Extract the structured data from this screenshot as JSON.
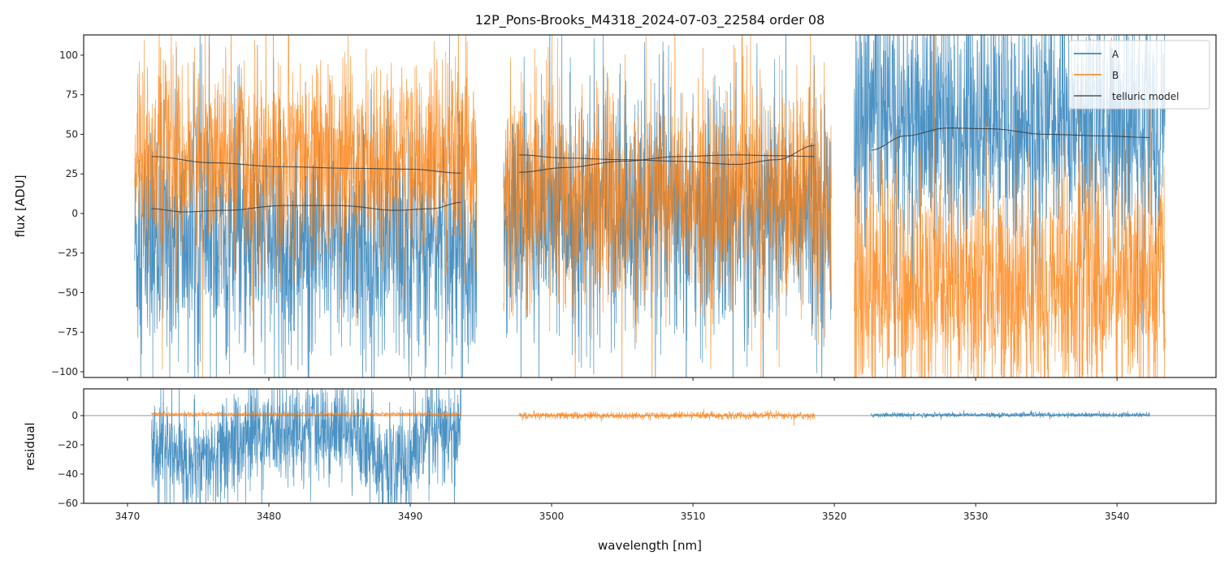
{
  "chart_data": [
    {
      "type": "line",
      "title": "12P_Pons-Brooks_M4318_2024-07-03_22584  order 08",
      "xlabel": "",
      "ylabel": "flux [ADU]",
      "xlim": [
        3466.9,
        3547.0
      ],
      "ylim": [
        -103.6,
        112.8
      ],
      "xticks": [
        3470,
        3480,
        3490,
        3500,
        3510,
        3520,
        3530,
        3540
      ],
      "yticks": [
        -100,
        -75,
        -50,
        -25,
        0,
        25,
        50,
        75,
        100
      ],
      "ytick_labels": [
        "−100",
        "−75",
        "−50",
        "−25",
        "0",
        "25",
        "50",
        "75",
        "100"
      ],
      "legend": {
        "placement": "top-right",
        "entries": [
          "A",
          "B",
          "telluric model"
        ]
      },
      "colors": {
        "A": "#1f77b4",
        "B": "#ff7f0e",
        "telluric model": "#333333"
      },
      "series": [
        {
          "name": "A",
          "segments": [
            {
              "x_range": [
                3470.5,
                3494.7
              ],
              "mean": -18,
              "noise": 38
            },
            {
              "x_range": [
                3496.6,
                3519.8
              ],
              "mean": 0,
              "noise": 38
            },
            {
              "x_range": [
                3521.4,
                3543.4
              ],
              "mean": 58,
              "noise": 40
            }
          ]
        },
        {
          "name": "B",
          "segments": [
            {
              "x_range": [
                3470.5,
                3494.7
              ],
              "mean": 33,
              "noise": 32
            },
            {
              "x_range": [
                3496.6,
                3519.8
              ],
              "mean": 10,
              "noise": 36
            },
            {
              "x_range": [
                3521.4,
                3543.4
              ],
              "mean": -45,
              "noise": 38
            }
          ]
        }
      ],
      "models": [
        {
          "name": "telluric model A seg1",
          "x": [
            3471.7,
            3474,
            3477,
            3481,
            3485,
            3489,
            3491.5,
            3493.6
          ],
          "y": [
            3,
            1,
            2,
            5,
            5,
            2,
            3,
            7
          ]
        },
        {
          "name": "telluric model B seg1",
          "x": [
            3471.7,
            3476,
            3481,
            3486,
            3490,
            3493.6
          ],
          "y": [
            36,
            32,
            29.5,
            28.5,
            28,
            25.5
          ]
        },
        {
          "name": "telluric model A seg2",
          "x": [
            3497.7,
            3501,
            3505,
            3509,
            3513,
            3516,
            3518.6
          ],
          "y": [
            37,
            35,
            34,
            33,
            31,
            34,
            43
          ]
        },
        {
          "name": "telluric model B seg2",
          "x": [
            3497.7,
            3501,
            3505,
            3509,
            3513,
            3516,
            3518.6
          ],
          "y": [
            26,
            29,
            33,
            36,
            37,
            36.5,
            36
          ]
        },
        {
          "name": "telluric model seg3",
          "x": [
            3522.6,
            3525,
            3528,
            3531,
            3535,
            3539,
            3542.3
          ],
          "y": [
            40,
            49,
            54,
            53.5,
            50,
            49,
            48
          ]
        }
      ]
    },
    {
      "type": "line",
      "title": "",
      "xlabel": "wavelength [nm]",
      "ylabel": "residual",
      "xlim": [
        3466.9,
        3547.0
      ],
      "ylim": [
        -60,
        18.3
      ],
      "xticks": [
        3470,
        3480,
        3490,
        3500,
        3510,
        3520,
        3530,
        3540
      ],
      "yticks": [
        -60,
        -40,
        -20,
        0
      ],
      "ytick_labels": [
        "−60",
        "−40",
        "−20",
        "0"
      ],
      "zero_line": 0,
      "series": [
        {
          "name": "A",
          "segments": [
            {
              "x_range": [
                3471.7,
                3493.6
              ],
              "mean": -25,
              "noise": 18,
              "profile": "double-dip"
            },
            {
              "x_range": [
                3522.6,
                3542.3
              ],
              "mean": 0.5,
              "noise": 0.8
            }
          ]
        },
        {
          "name": "B",
          "segments": [
            {
              "x_range": [
                3471.7,
                3493.6
              ],
              "mean": 1,
              "noise": 0.7
            },
            {
              "x_range": [
                3497.7,
                3518.6
              ],
              "mean": 0,
              "noise": 1.3
            }
          ]
        }
      ]
    }
  ]
}
